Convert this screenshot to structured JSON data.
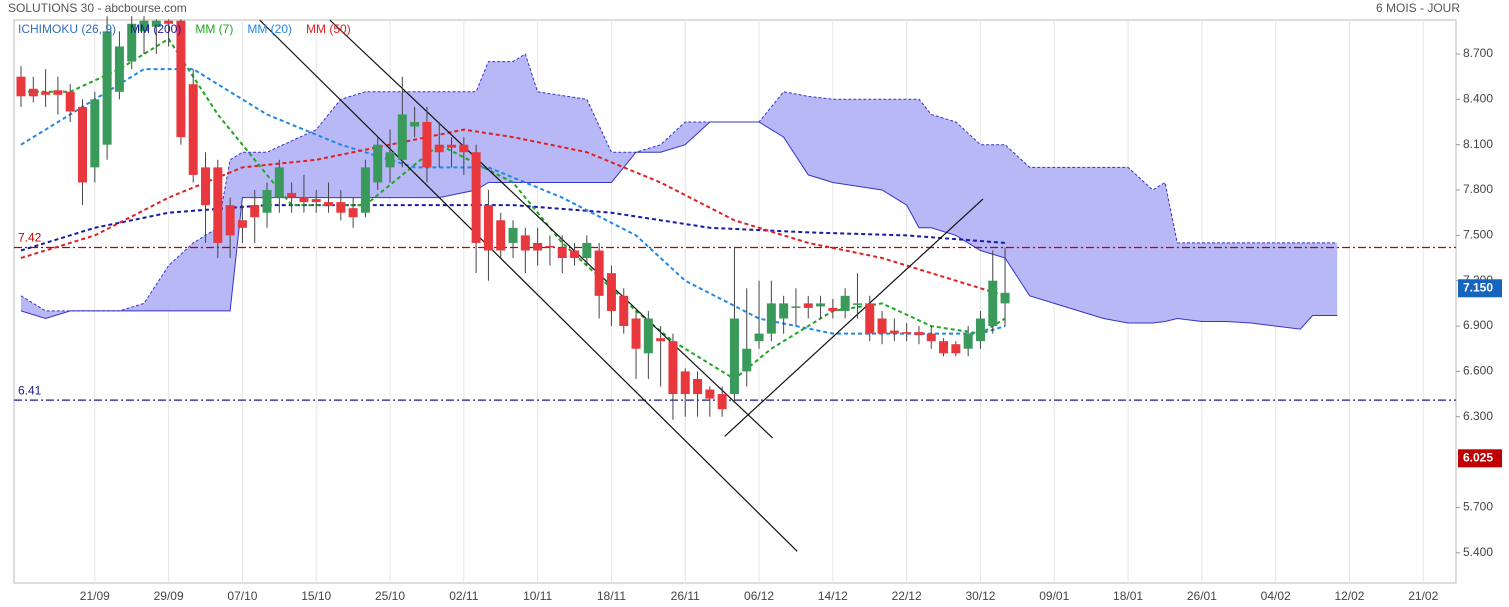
{
  "chart_data": {
    "type": "candlestick",
    "title": "SOLUTIONS 30 - abcbourse.com",
    "subtitle": "6 MOIS - JOUR",
    "xlim": [
      -0.57,
      116.66
    ],
    "ylim": [
      5.2,
      8.925
    ],
    "xticks": [
      {
        "value": 6,
        "label": "21/09"
      },
      {
        "value": 12,
        "label": "29/09"
      },
      {
        "value": 18,
        "label": "07/10"
      },
      {
        "value": 24,
        "label": "15/10"
      },
      {
        "value": 30,
        "label": "25/10"
      },
      {
        "value": 36,
        "label": "02/11"
      },
      {
        "value": 42,
        "label": "10/11"
      },
      {
        "value": 48,
        "label": "18/11"
      },
      {
        "value": 54,
        "label": "26/11"
      },
      {
        "value": 60,
        "label": "06/12"
      },
      {
        "value": 66,
        "label": "14/12"
      },
      {
        "value": 72,
        "label": "22/12"
      },
      {
        "value": 78,
        "label": "30/12"
      },
      {
        "value": 84,
        "label": "09/01"
      },
      {
        "value": 90,
        "label": "18/01"
      },
      {
        "value": 96,
        "label": "26/01"
      },
      {
        "value": 102,
        "label": "04/02"
      },
      {
        "value": 108,
        "label": "12/02"
      },
      {
        "value": 114,
        "label": "21/02"
      }
    ],
    "yticks": [
      {
        "value": 8.7,
        "label": "8.700"
      },
      {
        "value": 8.4,
        "label": "8.400"
      },
      {
        "value": 8.1,
        "label": "8.100"
      },
      {
        "value": 7.8,
        "label": "7.800"
      },
      {
        "value": 7.5,
        "label": "7.500"
      },
      {
        "value": 7.2,
        "label": "7.200"
      },
      {
        "value": 6.9,
        "label": "6.900"
      },
      {
        "value": 6.6,
        "label": "6.600"
      },
      {
        "value": 6.3,
        "label": "6.300"
      },
      {
        "value": 5.7,
        "label": "5.700"
      },
      {
        "value": 5.4,
        "label": "5.400"
      }
    ],
    "grid": true,
    "up_color": "#3a9a5b",
    "down_color": "#e8383d",
    "candles": {
      "open": [
        8.55,
        8.47,
        8.45,
        8.46,
        8.45,
        8.35,
        7.95,
        8.1,
        8.45,
        8.65,
        8.85,
        8.88,
        8.92,
        8.92,
        8.5,
        7.95,
        7.95,
        7.7,
        7.6,
        7.7,
        7.65,
        7.75,
        7.78,
        7.75,
        7.74,
        7.72,
        7.72,
        7.68,
        7.65,
        7.85,
        7.95,
        8.0,
        8.22,
        8.25,
        8.1,
        8.1,
        8.1,
        8.05,
        7.7,
        7.6,
        7.45,
        7.5,
        7.45,
        7.43,
        7.42,
        7.4,
        7.35,
        7.4,
        7.25,
        7.1,
        6.95,
        6.72,
        6.82,
        6.8,
        6.6,
        6.55,
        6.48,
        6.45,
        6.45,
        6.6,
        6.8,
        6.85,
        6.95,
        7.02,
        7.05,
        7.03,
        7.02,
        7.0,
        7.05,
        7.05,
        6.95,
        6.87,
        6.86,
        6.86,
        6.85,
        6.8,
        6.78,
        6.75,
        6.8,
        6.9,
        7.05
      ],
      "high": [
        8.62,
        8.55,
        8.6,
        8.55,
        8.5,
        8.4,
        8.45,
        8.95,
        8.85,
        8.95,
        8.95,
        8.93,
        8.93,
        8.93,
        8.6,
        8.05,
        8.0,
        7.75,
        7.7,
        7.8,
        7.85,
        8.0,
        7.85,
        7.9,
        7.8,
        7.85,
        7.8,
        7.75,
        8.0,
        8.15,
        8.2,
        8.55,
        8.35,
        8.35,
        8.25,
        8.15,
        8.15,
        8.1,
        7.8,
        7.65,
        7.6,
        7.55,
        7.55,
        7.5,
        7.5,
        7.45,
        7.5,
        7.45,
        7.3,
        7.15,
        7.0,
        7.0,
        6.9,
        6.85,
        6.62,
        6.6,
        6.5,
        6.5,
        7.42,
        7.15,
        7.2,
        7.2,
        7.1,
        7.15,
        7.1,
        7.1,
        7.08,
        7.15,
        7.25,
        7.1,
        7.0,
        6.95,
        6.92,
        6.9,
        6.9,
        6.82,
        6.8,
        6.9,
        7.0,
        7.4,
        7.42
      ],
      "low": [
        8.35,
        8.38,
        8.35,
        8.3,
        8.25,
        7.7,
        7.85,
        8.0,
        8.4,
        8.6,
        8.7,
        8.7,
        8.75,
        8.1,
        7.85,
        7.45,
        7.35,
        7.35,
        7.45,
        7.45,
        7.55,
        7.65,
        7.65,
        7.65,
        7.65,
        7.65,
        7.6,
        7.55,
        7.62,
        7.8,
        7.85,
        7.95,
        8.15,
        7.85,
        7.95,
        7.95,
        7.9,
        7.25,
        7.2,
        7.35,
        7.35,
        7.25,
        7.3,
        7.3,
        7.25,
        7.3,
        7.3,
        6.95,
        6.9,
        6.85,
        6.55,
        6.55,
        6.5,
        6.28,
        6.3,
        6.3,
        6.3,
        6.3,
        6.4,
        6.5,
        6.75,
        6.8,
        6.85,
        6.9,
        6.95,
        6.95,
        6.95,
        6.95,
        6.95,
        6.8,
        6.78,
        6.8,
        6.8,
        6.78,
        6.75,
        6.7,
        6.7,
        6.7,
        6.75,
        6.85,
        6.9
      ],
      "close": [
        8.42,
        8.42,
        8.43,
        8.43,
        8.32,
        7.85,
        8.4,
        8.85,
        8.75,
        8.9,
        8.92,
        8.92,
        8.9,
        8.15,
        7.9,
        7.7,
        7.45,
        7.5,
        7.55,
        7.62,
        7.8,
        7.95,
        7.75,
        7.72,
        7.72,
        7.7,
        7.65,
        7.62,
        7.95,
        8.1,
        8.05,
        8.3,
        8.25,
        7.95,
        8.05,
        8.08,
        8.05,
        7.45,
        7.4,
        7.4,
        7.55,
        7.4,
        7.4,
        7.42,
        7.35,
        7.35,
        7.45,
        7.1,
        7.0,
        6.9,
        6.75,
        6.95,
        6.8,
        6.45,
        6.45,
        6.45,
        6.42,
        6.35,
        6.95,
        6.75,
        6.85,
        7.05,
        7.05,
        7.03,
        7.02,
        7.05,
        7.0,
        7.1,
        7.05,
        6.85,
        6.85,
        6.85,
        6.85,
        6.84,
        6.8,
        6.72,
        6.72,
        6.85,
        6.95,
        7.2,
        7.12
      ]
    },
    "ichimoku": {
      "name": "ICHIMOKU (26, 9)",
      "color": "#2e6fc0",
      "cloud_color": "#b4b4f6",
      "edge_color": "#3434c8",
      "x": [
        0,
        2,
        4,
        8,
        10,
        12,
        14,
        15,
        16,
        17,
        18,
        20,
        24,
        26,
        28,
        30,
        34,
        37,
        38,
        40,
        41,
        42,
        46,
        48,
        50,
        52,
        54,
        56,
        60,
        62,
        64,
        66,
        70,
        72,
        73,
        74,
        76,
        78,
        80,
        82,
        84,
        88,
        90,
        92,
        93,
        94,
        96,
        98,
        100,
        104,
        105,
        107
      ],
      "span_a": [
        7.1,
        7.0,
        7.0,
        7.0,
        7.05,
        7.3,
        7.45,
        7.5,
        7.55,
        8.0,
        8.05,
        8.05,
        8.2,
        8.4,
        8.45,
        8.45,
        8.45,
        8.45,
        8.65,
        8.65,
        8.7,
        8.45,
        8.4,
        8.05,
        8.05,
        8.1,
        8.25,
        8.25,
        8.25,
        8.45,
        8.42,
        8.4,
        8.4,
        8.4,
        8.4,
        8.3,
        8.25,
        8.1,
        8.1,
        7.95,
        7.95,
        7.95,
        7.95,
        7.8,
        7.85,
        7.45,
        7.45,
        7.45,
        7.45,
        7.45,
        7.45,
        7.45
      ],
      "span_b": [
        7.0,
        6.95,
        7.0,
        7.0,
        7.0,
        7.0,
        7.0,
        7.0,
        7.0,
        7.0,
        7.75,
        7.75,
        7.75,
        7.75,
        7.75,
        7.75,
        7.75,
        7.8,
        7.85,
        7.85,
        7.85,
        7.85,
        7.85,
        7.85,
        8.05,
        8.05,
        8.1,
        8.25,
        8.25,
        8.15,
        7.9,
        7.85,
        7.8,
        7.7,
        7.55,
        7.55,
        7.5,
        7.4,
        7.35,
        7.1,
        7.05,
        6.95,
        6.92,
        6.92,
        6.93,
        6.95,
        6.93,
        6.93,
        6.92,
        6.88,
        6.97,
        6.97
      ]
    },
    "series": [
      {
        "name": "MM (200)",
        "color": "#1a1aa8",
        "x": [
          0,
          6,
          12,
          20,
          30,
          40,
          48,
          56,
          64,
          72,
          80
        ],
        "values": [
          7.4,
          7.55,
          7.65,
          7.7,
          7.7,
          7.7,
          7.65,
          7.55,
          7.52,
          7.5,
          7.45
        ]
      },
      {
        "name": "MM (7)",
        "color": "#1fa81f",
        "x": [
          0,
          4,
          8,
          12,
          16,
          22,
          28,
          34,
          40,
          44,
          50,
          53,
          58,
          61,
          66,
          70,
          74,
          78,
          80
        ],
        "values": [
          8.45,
          8.45,
          8.6,
          8.8,
          8.3,
          7.7,
          7.7,
          8.1,
          7.85,
          7.45,
          7.0,
          6.8,
          6.55,
          6.75,
          7.0,
          7.05,
          6.9,
          6.85,
          6.95
        ]
      },
      {
        "name": "MM (20)",
        "color": "#1e88e5",
        "x": [
          0,
          4,
          10,
          14,
          20,
          26,
          32,
          38,
          44,
          50,
          54,
          60,
          66,
          72,
          78,
          80
        ],
        "values": [
          8.1,
          8.3,
          8.6,
          8.6,
          8.3,
          8.1,
          7.95,
          7.95,
          7.75,
          7.5,
          7.2,
          6.95,
          6.85,
          6.85,
          6.85,
          6.9
        ]
      },
      {
        "name": "MM (50)",
        "color": "#e02020",
        "x": [
          0,
          6,
          12,
          18,
          24,
          30,
          36,
          40,
          46,
          52,
          58,
          64,
          70,
          76,
          80
        ],
        "values": [
          7.35,
          7.5,
          7.75,
          7.95,
          8.0,
          8.1,
          8.2,
          8.15,
          8.05,
          7.85,
          7.6,
          7.45,
          7.35,
          7.2,
          7.1
        ]
      }
    ],
    "trendlines": [
      {
        "x": [
          19.4,
          63.1
        ],
        "values": [
          8.925,
          5.41
        ]
      },
      {
        "x": [
          25.1,
          61.1
        ],
        "values": [
          8.925,
          6.16
        ]
      },
      {
        "x": [
          57.2,
          78.2
        ],
        "values": [
          6.17,
          7.74
        ]
      }
    ],
    "levels": [
      {
        "value": 7.42,
        "color": "#c00000"
      },
      {
        "value": 6.41,
        "color": "#1a1a8a"
      }
    ],
    "price_labels": [
      {
        "value": 7.15,
        "label": "7.150",
        "color": "#1565c0"
      },
      {
        "value": 6.025,
        "label": "6.025",
        "color": "#c00000"
      }
    ]
  }
}
